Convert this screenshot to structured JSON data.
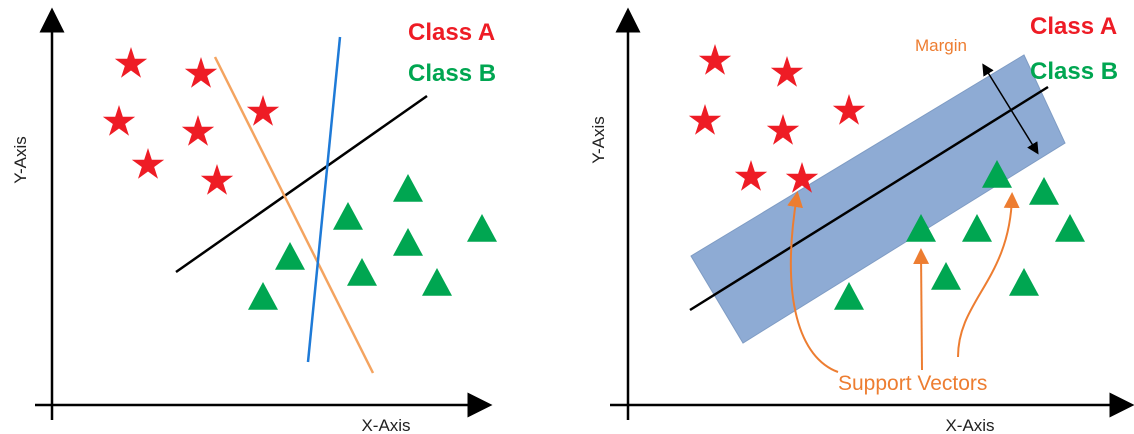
{
  "colors": {
    "class_a": "#ee1c25",
    "class_b": "#00a651",
    "axis": "#000000",
    "hyperplane_black": "#000000",
    "hyperplane_orange": "#f4a460",
    "hyperplane_blue": "#1e7ad7",
    "margin_band": "#8eabd4",
    "annotation": "#ed7d31"
  },
  "icons": {
    "class_a_marker": "star-icon",
    "class_b_marker": "triangle-icon"
  },
  "left_panel": {
    "y_axis_label": "Y-Axis",
    "x_axis_label": "X-Axis",
    "legend": {
      "class_a": "Class A",
      "class_b": "Class B"
    }
  },
  "right_panel": {
    "y_axis_label": "Y-Axis",
    "x_axis_label": "X-Axis",
    "legend": {
      "class_a": "Class A",
      "class_b": "Class B"
    },
    "margin_label": "Margin",
    "support_vectors_label": "Support Vectors"
  }
}
